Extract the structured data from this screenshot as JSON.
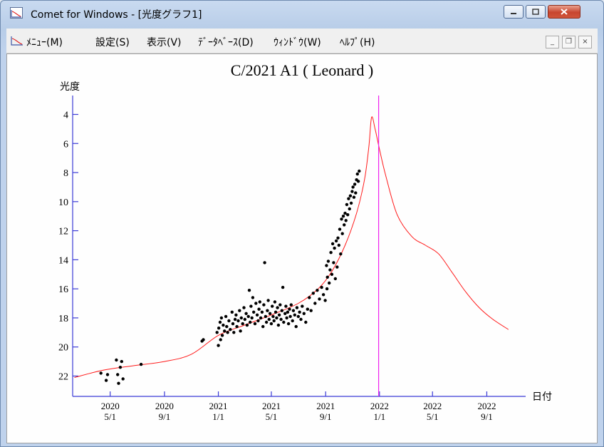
{
  "window": {
    "title": "Comet for Windows - [光度グラフ1]"
  },
  "menu": {
    "items": [
      "ﾒﾆｭｰ(M)",
      "設定(S)",
      "表示(V)",
      "ﾃﾞｰﾀﾍﾞｰｽ(D)",
      "ｳｨﾝﾄﾞｳ(W)",
      "ﾍﾙﾌﾟ(H)"
    ]
  },
  "colors": {
    "axis": "#3a3ad6",
    "curve": "#ff1a1a",
    "points": "#000000",
    "marker": "#ee22ee"
  },
  "chart_data": {
    "type": "scatter",
    "title": "C/2021 A1 ( Leonard )",
    "ylabel": "光度",
    "xlabel": "日付",
    "y_inverted": true,
    "ylim": [
      23.4,
      2.7
    ],
    "y_ticks": [
      4,
      6,
      8,
      10,
      12,
      14,
      16,
      18,
      20,
      22
    ],
    "xlim": [
      "2020-02-06",
      "2022-11-28"
    ],
    "x_ticks": [
      {
        "date": "2020-05-01",
        "line1": "2020",
        "line2": "5/1"
      },
      {
        "date": "2020-09-01",
        "line1": "2020",
        "line2": "9/1"
      },
      {
        "date": "2021-01-01",
        "line1": "2021",
        "line2": "1/1"
      },
      {
        "date": "2021-05-01",
        "line1": "2021",
        "line2": "5/1"
      },
      {
        "date": "2021-09-01",
        "line1": "2021",
        "line2": "9/1"
      },
      {
        "date": "2022-01-01",
        "line1": "2022",
        "line2": "1/1"
      },
      {
        "date": "2022-05-01",
        "line1": "2022",
        "line2": "5/1"
      },
      {
        "date": "2022-09-01",
        "line1": "2022",
        "line2": "9/1"
      }
    ],
    "current_date_marker": "2021-12-30",
    "grid": false,
    "predicted_curve": [
      {
        "x": "2020-02-10",
        "y": 22.1
      },
      {
        "x": "2020-04-15",
        "y": 21.6
      },
      {
        "x": "2020-06-20",
        "y": 21.3
      },
      {
        "x": "2020-09-01",
        "y": 21.0
      },
      {
        "x": "2020-11-01",
        "y": 20.5
      },
      {
        "x": "2021-01-01",
        "y": 19.2
      },
      {
        "x": "2021-03-01",
        "y": 18.5
      },
      {
        "x": "2021-05-01",
        "y": 17.8
      },
      {
        "x": "2021-07-01",
        "y": 17.0
      },
      {
        "x": "2021-08-15",
        "y": 16.0
      },
      {
        "x": "2021-09-15",
        "y": 14.8
      },
      {
        "x": "2021-10-15",
        "y": 13.0
      },
      {
        "x": "2021-11-10",
        "y": 10.8
      },
      {
        "x": "2021-11-28",
        "y": 8.5
      },
      {
        "x": "2021-12-08",
        "y": 6.2
      },
      {
        "x": "2021-12-14",
        "y": 4.2
      },
      {
        "x": "2021-12-22",
        "y": 5.0
      },
      {
        "x": "2022-01-01",
        "y": 6.4
      },
      {
        "x": "2022-01-15",
        "y": 8.2
      },
      {
        "x": "2022-02-10",
        "y": 10.9
      },
      {
        "x": "2022-03-15",
        "y": 12.4
      },
      {
        "x": "2022-04-15",
        "y": 13.0
      },
      {
        "x": "2022-05-15",
        "y": 13.6
      },
      {
        "x": "2022-06-15",
        "y": 14.9
      },
      {
        "x": "2022-07-15",
        "y": 16.2
      },
      {
        "x": "2022-08-15",
        "y": 17.3
      },
      {
        "x": "2022-09-15",
        "y": 18.1
      },
      {
        "x": "2022-10-20",
        "y": 18.8
      }
    ],
    "observations": [
      {
        "x": "2020-04-10",
        "y": 21.8
      },
      {
        "x": "2020-04-22",
        "y": 22.3
      },
      {
        "x": "2020-04-25",
        "y": 21.9
      },
      {
        "x": "2020-05-18",
        "y": 21.9
      },
      {
        "x": "2020-05-15",
        "y": 20.9
      },
      {
        "x": "2020-05-24",
        "y": 21.4
      },
      {
        "x": "2020-05-20",
        "y": 22.5
      },
      {
        "x": "2020-05-27",
        "y": 21.0
      },
      {
        "x": "2020-05-30",
        "y": 22.2
      },
      {
        "x": "2020-07-10",
        "y": 21.2
      },
      {
        "x": "2020-11-25",
        "y": 19.6
      },
      {
        "x": "2020-11-28",
        "y": 19.5
      },
      {
        "x": "2020-12-29",
        "y": 19.0
      },
      {
        "x": "2021-01-01",
        "y": 19.9
      },
      {
        "x": "2021-01-02",
        "y": 18.7
      },
      {
        "x": "2021-01-05",
        "y": 18.3
      },
      {
        "x": "2021-01-06",
        "y": 19.5
      },
      {
        "x": "2021-01-08",
        "y": 18.0
      },
      {
        "x": "2021-01-10",
        "y": 19.2
      },
      {
        "x": "2021-01-12",
        "y": 18.5
      },
      {
        "x": "2021-01-15",
        "y": 18.9
      },
      {
        "x": "2021-01-18",
        "y": 17.9
      },
      {
        "x": "2021-01-20",
        "y": 18.6
      },
      {
        "x": "2021-01-22",
        "y": 19.0
      },
      {
        "x": "2021-01-25",
        "y": 18.2
      },
      {
        "x": "2021-01-28",
        "y": 18.8
      },
      {
        "x": "2021-02-01",
        "y": 17.6
      },
      {
        "x": "2021-02-03",
        "y": 18.4
      },
      {
        "x": "2021-02-05",
        "y": 19.0
      },
      {
        "x": "2021-02-08",
        "y": 18.1
      },
      {
        "x": "2021-02-10",
        "y": 17.8
      },
      {
        "x": "2021-02-12",
        "y": 18.6
      },
      {
        "x": "2021-02-15",
        "y": 18.2
      },
      {
        "x": "2021-02-18",
        "y": 17.5
      },
      {
        "x": "2021-02-20",
        "y": 18.9
      },
      {
        "x": "2021-02-22",
        "y": 18.0
      },
      {
        "x": "2021-02-25",
        "y": 18.4
      },
      {
        "x": "2021-02-28",
        "y": 17.3
      },
      {
        "x": "2021-03-02",
        "y": 18.1
      },
      {
        "x": "2021-03-05",
        "y": 17.7
      },
      {
        "x": "2021-03-07",
        "y": 18.5
      },
      {
        "x": "2021-03-10",
        "y": 17.9
      },
      {
        "x": "2021-03-12",
        "y": 16.1
      },
      {
        "x": "2021-03-14",
        "y": 18.3
      },
      {
        "x": "2021-03-16",
        "y": 17.2
      },
      {
        "x": "2021-03-18",
        "y": 18.0
      },
      {
        "x": "2021-03-20",
        "y": 16.6
      },
      {
        "x": "2021-03-22",
        "y": 17.6
      },
      {
        "x": "2021-03-25",
        "y": 18.4
      },
      {
        "x": "2021-03-27",
        "y": 17.0
      },
      {
        "x": "2021-03-30",
        "y": 17.8
      },
      {
        "x": "2021-04-01",
        "y": 18.2
      },
      {
        "x": "2021-04-03",
        "y": 17.4
      },
      {
        "x": "2021-04-05",
        "y": 16.9
      },
      {
        "x": "2021-04-07",
        "y": 18.0
      },
      {
        "x": "2021-04-10",
        "y": 17.6
      },
      {
        "x": "2021-04-12",
        "y": 18.6
      },
      {
        "x": "2021-04-14",
        "y": 17.1
      },
      {
        "x": "2021-04-16",
        "y": 14.2
      },
      {
        "x": "2021-04-18",
        "y": 17.9
      },
      {
        "x": "2021-04-20",
        "y": 18.3
      },
      {
        "x": "2021-04-22",
        "y": 17.5
      },
      {
        "x": "2021-04-24",
        "y": 16.8
      },
      {
        "x": "2021-04-26",
        "y": 18.1
      },
      {
        "x": "2021-04-28",
        "y": 17.7
      },
      {
        "x": "2021-05-01",
        "y": 18.4
      },
      {
        "x": "2021-05-03",
        "y": 17.2
      },
      {
        "x": "2021-05-05",
        "y": 17.9
      },
      {
        "x": "2021-05-07",
        "y": 18.2
      },
      {
        "x": "2021-05-09",
        "y": 16.9
      },
      {
        "x": "2021-05-11",
        "y": 17.6
      },
      {
        "x": "2021-05-13",
        "y": 18.0
      },
      {
        "x": "2021-05-15",
        "y": 17.3
      },
      {
        "x": "2021-05-17",
        "y": 18.5
      },
      {
        "x": "2021-05-19",
        "y": 17.8
      },
      {
        "x": "2021-05-21",
        "y": 17.1
      },
      {
        "x": "2021-05-23",
        "y": 18.1
      },
      {
        "x": "2021-05-25",
        "y": 17.5
      },
      {
        "x": "2021-05-27",
        "y": 15.9
      },
      {
        "x": "2021-05-29",
        "y": 18.3
      },
      {
        "x": "2021-06-01",
        "y": 17.7
      },
      {
        "x": "2021-06-03",
        "y": 17.2
      },
      {
        "x": "2021-06-05",
        "y": 18.0
      },
      {
        "x": "2021-06-07",
        "y": 17.6
      },
      {
        "x": "2021-06-09",
        "y": 18.4
      },
      {
        "x": "2021-06-11",
        "y": 17.4
      },
      {
        "x": "2021-06-13",
        "y": 17.9
      },
      {
        "x": "2021-06-15",
        "y": 17.1
      },
      {
        "x": "2021-06-18",
        "y": 18.2
      },
      {
        "x": "2021-06-20",
        "y": 17.5
      },
      {
        "x": "2021-06-23",
        "y": 17.8
      },
      {
        "x": "2021-06-26",
        "y": 18.6
      },
      {
        "x": "2021-06-28",
        "y": 17.3
      },
      {
        "x": "2021-07-01",
        "y": 17.9
      },
      {
        "x": "2021-07-04",
        "y": 17.6
      },
      {
        "x": "2021-07-07",
        "y": 18.1
      },
      {
        "x": "2021-07-10",
        "y": 17.2
      },
      {
        "x": "2021-07-14",
        "y": 17.7
      },
      {
        "x": "2021-07-18",
        "y": 18.3
      },
      {
        "x": "2021-07-22",
        "y": 17.4
      },
      {
        "x": "2021-07-26",
        "y": 16.6
      },
      {
        "x": "2021-07-30",
        "y": 17.5
      },
      {
        "x": "2021-08-04",
        "y": 16.3
      },
      {
        "x": "2021-08-08",
        "y": 17.0
      },
      {
        "x": "2021-08-13",
        "y": 16.1
      },
      {
        "x": "2021-08-18",
        "y": 16.7
      },
      {
        "x": "2021-08-23",
        "y": 15.9
      },
      {
        "x": "2021-08-27",
        "y": 16.4
      },
      {
        "x": "2021-08-31",
        "y": 16.8
      },
      {
        "x": "2021-09-03",
        "y": 14.4
      },
      {
        "x": "2021-09-04",
        "y": 16.0
      },
      {
        "x": "2021-09-05",
        "y": 15.2
      },
      {
        "x": "2021-09-07",
        "y": 14.1
      },
      {
        "x": "2021-09-09",
        "y": 15.6
      },
      {
        "x": "2021-09-11",
        "y": 14.7
      },
      {
        "x": "2021-09-13",
        "y": 13.5
      },
      {
        "x": "2021-09-15",
        "y": 15.0
      },
      {
        "x": "2021-09-17",
        "y": 12.9
      },
      {
        "x": "2021-09-19",
        "y": 14.2
      },
      {
        "x": "2021-09-21",
        "y": 13.2
      },
      {
        "x": "2021-09-23",
        "y": 15.3
      },
      {
        "x": "2021-09-25",
        "y": 12.7
      },
      {
        "x": "2021-09-27",
        "y": 14.5
      },
      {
        "x": "2021-09-29",
        "y": 12.5
      },
      {
        "x": "2021-10-01",
        "y": 13.0
      },
      {
        "x": "2021-10-03",
        "y": 11.9
      },
      {
        "x": "2021-10-05",
        "y": 13.6
      },
      {
        "x": "2021-10-07",
        "y": 11.2
      },
      {
        "x": "2021-10-09",
        "y": 12.2
      },
      {
        "x": "2021-10-11",
        "y": 11.0
      },
      {
        "x": "2021-10-13",
        "y": 11.6
      },
      {
        "x": "2021-10-15",
        "y": 10.8
      },
      {
        "x": "2021-10-17",
        "y": 11.3
      },
      {
        "x": "2021-10-19",
        "y": 10.2
      },
      {
        "x": "2021-10-21",
        "y": 10.9
      },
      {
        "x": "2021-10-23",
        "y": 9.8
      },
      {
        "x": "2021-10-25",
        "y": 10.5
      },
      {
        "x": "2021-10-27",
        "y": 9.6
      },
      {
        "x": "2021-10-29",
        "y": 10.1
      },
      {
        "x": "2021-10-31",
        "y": 9.3
      },
      {
        "x": "2021-11-02",
        "y": 9.0
      },
      {
        "x": "2021-11-04",
        "y": 9.7
      },
      {
        "x": "2021-11-06",
        "y": 8.8
      },
      {
        "x": "2021-11-08",
        "y": 9.4
      },
      {
        "x": "2021-11-10",
        "y": 8.5
      },
      {
        "x": "2021-11-12",
        "y": 8.1
      },
      {
        "x": "2021-11-14",
        "y": 8.6
      },
      {
        "x": "2021-11-16",
        "y": 7.9
      }
    ]
  }
}
